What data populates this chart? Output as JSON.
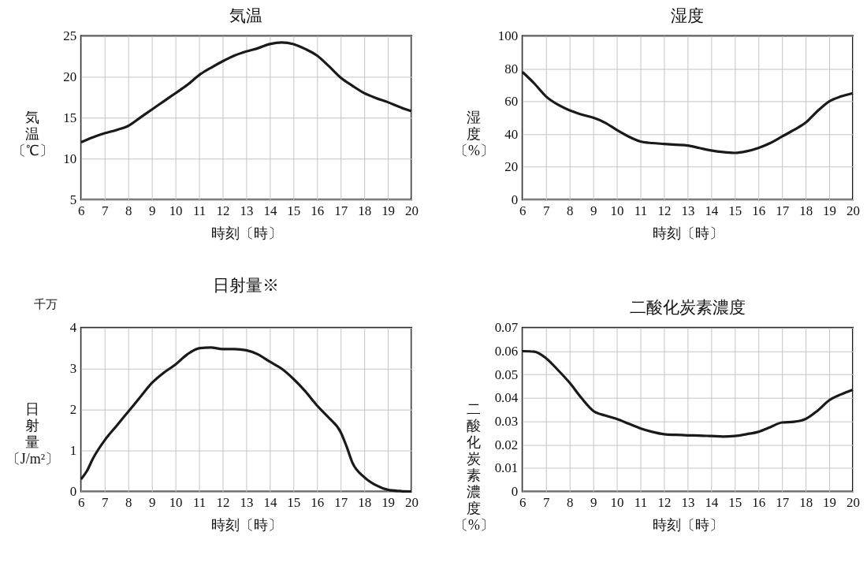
{
  "chart_data": [
    {
      "type": "line",
      "title": "気温",
      "xlabel": "時刻〔時〕",
      "ylabel": "気温〔℃〕",
      "xlim": [
        6,
        20
      ],
      "xticks": [
        6,
        7,
        8,
        9,
        10,
        11,
        12,
        13,
        14,
        15,
        16,
        17,
        18,
        19,
        20
      ],
      "ylim": [
        5,
        25
      ],
      "yticks": [
        5,
        10,
        15,
        20,
        25
      ],
      "grid": true,
      "series": [
        {
          "color": "#1a1a1a",
          "x": [
            6,
            6.5,
            7,
            7.5,
            8,
            8.5,
            9,
            9.5,
            10,
            10.5,
            11,
            11.5,
            12,
            12.5,
            13,
            13.5,
            14,
            14.5,
            15,
            15.5,
            16,
            16.5,
            17,
            17.5,
            18,
            18.5,
            19,
            19.5,
            20
          ],
          "values": [
            12.0,
            12.6,
            13.1,
            13.5,
            14.0,
            15.0,
            16.0,
            17.0,
            18.0,
            19.0,
            20.2,
            21.1,
            21.9,
            22.6,
            23.1,
            23.5,
            24.0,
            24.2,
            24.0,
            23.4,
            22.6,
            21.3,
            19.9,
            18.9,
            18.0,
            17.4,
            16.9,
            16.3,
            15.8
          ]
        }
      ]
    },
    {
      "type": "line",
      "title": "湿度",
      "xlabel": "時刻〔時〕",
      "ylabel": "湿度〔%〕",
      "xlim": [
        6,
        20
      ],
      "xticks": [
        6,
        7,
        8,
        9,
        10,
        11,
        12,
        13,
        14,
        15,
        16,
        17,
        18,
        19,
        20
      ],
      "ylim": [
        0,
        100
      ],
      "yticks": [
        0,
        20,
        40,
        60,
        80,
        100
      ],
      "grid": true,
      "series": [
        {
          "color": "#1a1a1a",
          "x": [
            6,
            6.5,
            7,
            7.5,
            8,
            8.5,
            9,
            9.5,
            10,
            10.5,
            11,
            11.5,
            12,
            12.5,
            13,
            13.5,
            14,
            14.5,
            15,
            15.5,
            16,
            16.5,
            17,
            17.5,
            18,
            18.5,
            19,
            19.5,
            20
          ],
          "values": [
            78,
            71,
            63,
            58,
            54.5,
            52,
            50,
            47,
            42.5,
            38.5,
            35.5,
            34.5,
            34,
            33.5,
            33,
            31.5,
            30,
            29,
            28.5,
            29.5,
            31.5,
            34.5,
            38.5,
            42.5,
            47,
            54,
            60,
            63,
            65
          ]
        }
      ]
    },
    {
      "type": "line",
      "title": "日射量※",
      "xlabel": "時刻〔時〕",
      "ylabel": "日射量〔J/m²〕",
      "annotations": [
        "千万"
      ],
      "xlim": [
        6,
        20
      ],
      "xticks": [
        6,
        7,
        8,
        9,
        10,
        11,
        12,
        13,
        14,
        15,
        16,
        17,
        18,
        19,
        20
      ],
      "ylim": [
        0,
        4
      ],
      "yticks": [
        0,
        1,
        2,
        3,
        4
      ],
      "grid": true,
      "series": [
        {
          "color": "#1a1a1a",
          "x": [
            6,
            6.25,
            6.5,
            7,
            7.5,
            8,
            8.5,
            9,
            9.5,
            10,
            10.5,
            11,
            11.5,
            12,
            12.5,
            13,
            13.5,
            14,
            14.5,
            15,
            15.5,
            16,
            16.5,
            17,
            17.25,
            17.5,
            18,
            18.5,
            19,
            19.5,
            20
          ],
          "values": [
            0.3,
            0.5,
            0.8,
            1.25,
            1.6,
            1.95,
            2.3,
            2.65,
            2.9,
            3.1,
            3.35,
            3.5,
            3.52,
            3.48,
            3.48,
            3.45,
            3.35,
            3.17,
            3.0,
            2.75,
            2.45,
            2.1,
            1.8,
            1.45,
            1.1,
            0.7,
            0.35,
            0.15,
            0.04,
            0.01,
            0.0
          ]
        }
      ]
    },
    {
      "type": "line",
      "title": "二酸化炭素濃度",
      "xlabel": "時刻〔時〕",
      "ylabel": "二酸化炭素濃度〔%〕",
      "xlim": [
        6,
        20
      ],
      "xticks": [
        6,
        7,
        8,
        9,
        10,
        11,
        12,
        13,
        14,
        15,
        16,
        17,
        18,
        19,
        20
      ],
      "ylim": [
        0,
        0.07
      ],
      "yticks": [
        {
          "value": 0,
          "label": "0"
        },
        0.01,
        0.02,
        0.03,
        0.04,
        0.05,
        0.06,
        0.07
      ],
      "grid": true,
      "series": [
        {
          "color": "#1a1a1a",
          "x": [
            6,
            6.5,
            7,
            7.5,
            8,
            8.5,
            9,
            9.5,
            10,
            10.5,
            11,
            11.5,
            12,
            12.5,
            13,
            13.5,
            14,
            14.5,
            15,
            15.5,
            16,
            16.5,
            17,
            17.5,
            18,
            18.5,
            19,
            19.5,
            20
          ],
          "values": [
            0.06,
            0.0598,
            0.057,
            0.052,
            0.0465,
            0.04,
            0.0345,
            0.0325,
            0.031,
            0.029,
            0.027,
            0.0255,
            0.0245,
            0.0242,
            0.024,
            0.0239,
            0.0237,
            0.0235,
            0.0237,
            0.0245,
            0.0255,
            0.0275,
            0.0295,
            0.0298,
            0.031,
            0.0345,
            0.039,
            0.0415,
            0.0435
          ]
        }
      ]
    }
  ]
}
